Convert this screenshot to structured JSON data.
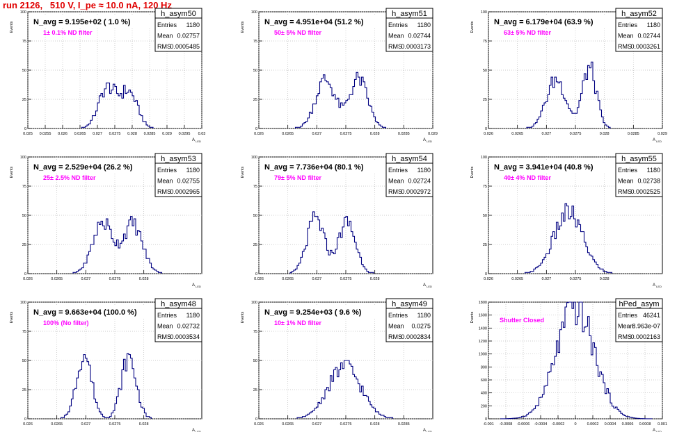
{
  "page": {
    "title": "run 2126,   510 V, I_pe ≈ 10.0 nA, 120 Hz"
  },
  "colors": {
    "histogram": "#000080",
    "annotation": "#ff00ff",
    "title": "#e00000",
    "grid": "#bfbfbf"
  },
  "common": {
    "ylabel": "Events",
    "xlabel": "A_{LED}",
    "stats_labels": [
      "Entries",
      "Mean",
      "RMS"
    ]
  },
  "chart_data": [
    {
      "type": "bar",
      "title": "h_asym50",
      "headline": "N_avg = 9.195e+02 ( 1.0 %)",
      "annotation": "1± 0.1% ND filter",
      "stats": {
        "Entries": "1180",
        "Mean": "0.02757",
        "RMS": "0.0005485"
      },
      "xlim": [
        0.025,
        0.03
      ],
      "x_ticks": [
        "0.025",
        "0.0255",
        "0.026",
        "0.0265",
        "0.027",
        "0.0275",
        "0.028",
        "0.0285",
        "0.029",
        "0.0295",
        "0.03"
      ],
      "ylim": [
        0,
        100
      ],
      "y_ticks": [
        "0",
        "25",
        "50",
        "75",
        "100"
      ],
      "peaks": [
        {
          "mu": 0.02728,
          "sigma": 0.00025,
          "amp": 34
        },
        {
          "mu": 0.0279,
          "sigma": 0.00025,
          "amp": 31
        }
      ],
      "bin_width": 5e-05,
      "grid": true
    },
    {
      "type": "bar",
      "title": "h_asym51",
      "headline": "N_avg = 4.951e+04 (51.2 %)",
      "annotation": "50± 5% ND filter",
      "stats": {
        "Entries": "1180",
        "Mean": "0.02744",
        "RMS": "0.0003173"
      },
      "xlim": [
        0.026,
        0.029
      ],
      "x_ticks": [
        "0.026",
        "0.0265",
        "0.027",
        "0.0275",
        "0.028",
        "0.0285",
        "0.029"
      ],
      "ylim": [
        0,
        100
      ],
      "y_ticks": [
        "0",
        "25",
        "50",
        "75",
        "100"
      ],
      "peaks": [
        {
          "mu": 0.02715,
          "sigma": 0.00017,
          "amp": 42
        },
        {
          "mu": 0.02772,
          "sigma": 0.00016,
          "amp": 42
        }
      ],
      "bin_width": 3e-05,
      "grid": true
    },
    {
      "type": "bar",
      "title": "h_asym52",
      "headline": "N_avg = 6.179e+04 (63.9 %)",
      "annotation": "63± 5% ND filter",
      "stats": {
        "Entries": "1180",
        "Mean": "0.02744",
        "RMS": "0.0003261"
      },
      "xlim": [
        0.026,
        0.029
      ],
      "x_ticks": [
        "0.026",
        "0.0265",
        "0.027",
        "0.0275",
        "0.028",
        "0.0285",
        "0.029"
      ],
      "ylim": [
        0,
        100
      ],
      "y_ticks": [
        "0",
        "25",
        "50",
        "75",
        "100"
      ],
      "peaks": [
        {
          "mu": 0.02717,
          "sigma": 0.00017,
          "amp": 42
        },
        {
          "mu": 0.02774,
          "sigma": 0.00012,
          "amp": 52
        }
      ],
      "bin_width": 3e-05,
      "grid": true
    },
    {
      "type": "bar",
      "title": "h_asym53",
      "headline": "N_avg = 2.529e+04 (26.2 %)",
      "annotation": "25± 2.5% ND filter",
      "stats": {
        "Entries": "1180",
        "Mean": "0.02755",
        "RMS": "0.0002965"
      },
      "xlim": [
        0.026,
        0.029
      ],
      "x_ticks": [
        "0.026",
        "0.0265",
        "0.027",
        "0.0275",
        "0.028"
      ],
      "ylim": [
        0,
        100
      ],
      "y_ticks": [
        "0",
        "25",
        "50",
        "75",
        "100"
      ],
      "peaks": [
        {
          "mu": 0.02729,
          "sigma": 0.00017,
          "amp": 44
        },
        {
          "mu": 0.02781,
          "sigma": 0.00017,
          "amp": 42
        }
      ],
      "bin_width": 3e-05,
      "grid": true
    },
    {
      "type": "bar",
      "title": "h_asym54",
      "headline": "N_avg = 7.736e+04 (80.1 %)",
      "annotation": "79± 5% ND filter",
      "stats": {
        "Entries": "1180",
        "Mean": "0.02724",
        "RMS": "0.0002972"
      },
      "xlim": [
        0.026,
        0.029
      ],
      "x_ticks": [
        "0.026",
        "0.0265",
        "0.027",
        "0.0275",
        "0.028"
      ],
      "ylim": [
        0,
        100
      ],
      "y_ticks": [
        "0",
        "25",
        "50",
        "75",
        "100"
      ],
      "peaks": [
        {
          "mu": 0.02698,
          "sigma": 0.00015,
          "amp": 47
        },
        {
          "mu": 0.02752,
          "sigma": 0.00015,
          "amp": 44
        }
      ],
      "bin_width": 3e-05,
      "grid": true
    },
    {
      "type": "bar",
      "title": "h_asym55",
      "headline": "N_avg = 3.941e+04 (40.8 %)",
      "annotation": "40± 4% ND filter",
      "stats": {
        "Entries": "1180",
        "Mean": "0.02738",
        "RMS": "0.0002525"
      },
      "xlim": [
        0.026,
        0.029
      ],
      "x_ticks": [
        "0.026",
        "0.0265",
        "0.027",
        "0.0275",
        "0.028"
      ],
      "ylim": [
        0,
        100
      ],
      "y_ticks": [
        "0",
        "25",
        "50",
        "75",
        "100"
      ],
      "peaks": [
        {
          "mu": 0.02738,
          "sigma": 0.00025,
          "amp": 52
        }
      ],
      "bin_width": 3e-05,
      "grid": true
    },
    {
      "type": "bar",
      "title": "h_asym48",
      "headline": "N_avg = 9.663e+04 (100.0 %)",
      "annotation": "100% (No filter)",
      "stats": {
        "Entries": "1180",
        "Mean": "0.02732",
        "RMS": "0.0003534"
      },
      "xlim": [
        0.026,
        0.029
      ],
      "x_ticks": [
        "0.026",
        "0.0265",
        "0.027",
        "0.0275",
        "0.028"
      ],
      "ylim": [
        0,
        100
      ],
      "y_ticks": [
        "0",
        "25",
        "50",
        "75",
        "100"
      ],
      "peaks": [
        {
          "mu": 0.02697,
          "sigma": 0.00013,
          "amp": 55
        },
        {
          "mu": 0.02774,
          "sigma": 0.00013,
          "amp": 52
        }
      ],
      "bin_width": 3e-05,
      "grid": true
    },
    {
      "type": "bar",
      "title": "h_asym49",
      "headline": "N_avg = 9.254e+03 ( 9.6 %)",
      "annotation": "10± 1% ND filter",
      "stats": {
        "Entries": "1180",
        "Mean": "0.0275",
        "RMS": "0.0002834"
      },
      "xlim": [
        0.026,
        0.029
      ],
      "x_ticks": [
        "0.026",
        "0.0265",
        "0.027",
        "0.0275",
        "0.028",
        "0.0285"
      ],
      "ylim": [
        0,
        100
      ],
      "y_ticks": [
        "0",
        "25",
        "50",
        "75",
        "100"
      ],
      "peaks": [
        {
          "mu": 0.02748,
          "sigma": 0.00028,
          "amp": 45
        }
      ],
      "bin_width": 3e-05,
      "grid": true
    },
    {
      "type": "bar",
      "title": "hPed_asym",
      "headline": "",
      "annotation": "Shutter Closed",
      "stats": {
        "Entries": "46241",
        "Mean": "8.963e-07",
        "RMS": "0.0002163"
      },
      "xlim": [
        -0.001,
        0.001
      ],
      "x_ticks": [
        "-0.001",
        "-0.0008",
        "-0.0006",
        "-0.0004",
        "-0.0002",
        "0",
        "0.0002",
        "0.0004",
        "0.0006",
        "0.0008",
        "0.001"
      ],
      "ylim": [
        0,
        1800
      ],
      "y_ticks": [
        "0",
        "200",
        "400",
        "600",
        "800",
        "1000",
        "1200",
        "1400",
        "1600",
        "1800"
      ],
      "peaks": [
        {
          "mu": 0.0,
          "sigma": 0.000216,
          "amp": 1720
        }
      ],
      "bin_width": 2e-05,
      "grid": true
    }
  ]
}
